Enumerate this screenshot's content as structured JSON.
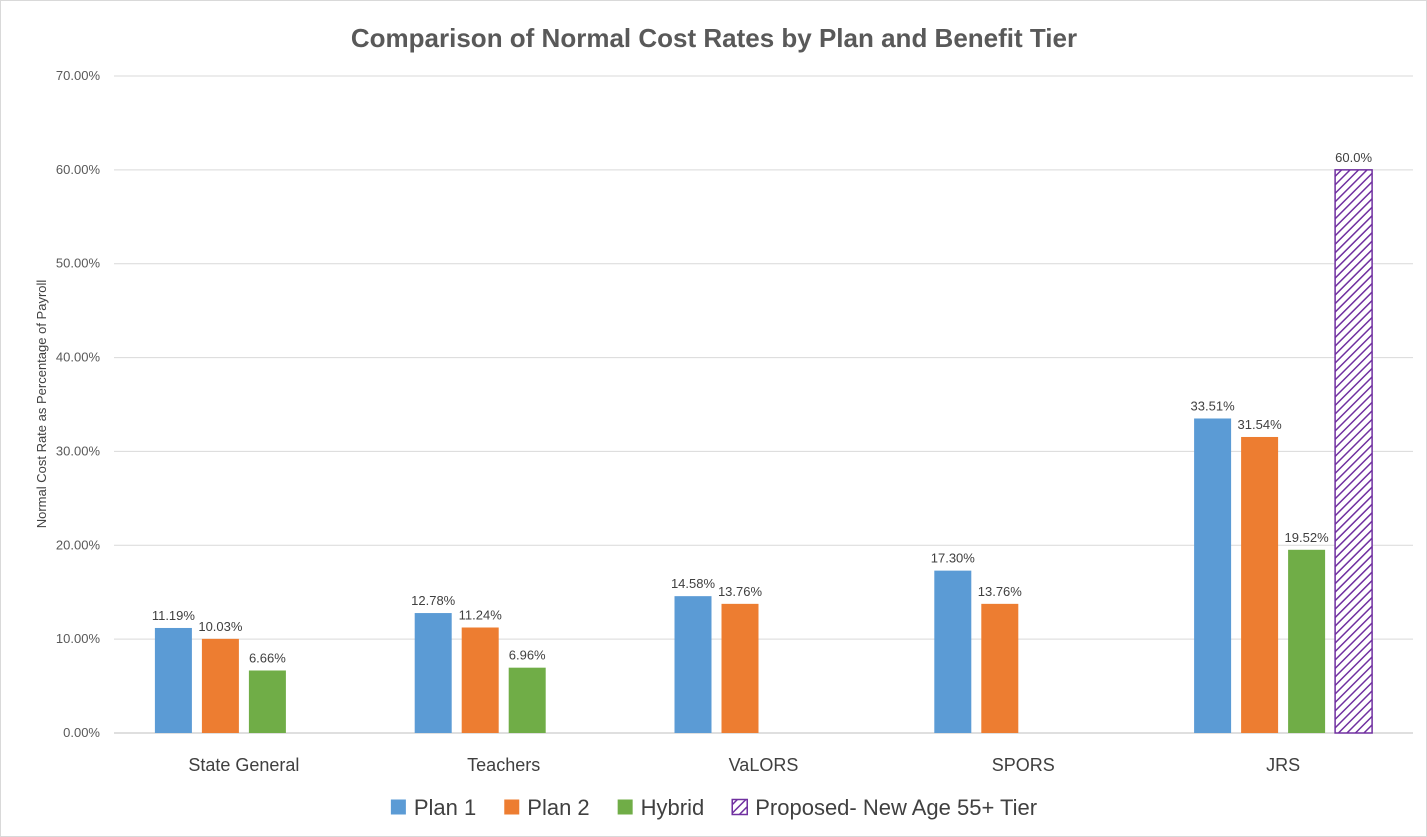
{
  "chart_data": {
    "type": "bar",
    "title": "Comparison of Normal Cost Rates by Plan and Benefit Tier",
    "xlabel": "",
    "ylabel": "Normal Cost Rate as Percentage of Payroll",
    "ylim": [
      0,
      70
    ],
    "yticks": [
      0,
      10,
      20,
      30,
      40,
      50,
      60,
      70
    ],
    "ytick_labels": [
      "0.00%",
      "10.00%",
      "20.00%",
      "30.00%",
      "40.00%",
      "50.00%",
      "60.00%",
      "70.00%"
    ],
    "grid": true,
    "legend_position": "bottom",
    "categories": [
      "State General",
      "Teachers",
      "VaLORS",
      "SPORS",
      "JRS"
    ],
    "series": [
      {
        "name": "Plan 1",
        "color": "#5b9bd5",
        "pattern": "solid",
        "values": [
          11.19,
          12.78,
          14.58,
          17.3,
          33.51
        ],
        "labels": [
          "11.19%",
          "12.78%",
          "14.58%",
          "17.30%",
          "33.51%"
        ]
      },
      {
        "name": "Plan 2",
        "color": "#ed7d31",
        "pattern": "solid",
        "values": [
          10.03,
          11.24,
          13.76,
          13.76,
          31.54
        ],
        "labels": [
          "10.03%",
          "11.24%",
          "13.76%",
          "13.76%",
          "31.54%"
        ]
      },
      {
        "name": "Hybrid",
        "color": "#70ad47",
        "pattern": "solid",
        "values": [
          6.66,
          6.96,
          null,
          null,
          19.52
        ],
        "labels": [
          "6.66%",
          "6.96%",
          null,
          null,
          "19.52%"
        ]
      },
      {
        "name": "Proposed- New Age 55+ Tier",
        "color": "#7030a0",
        "pattern": "diagonal-hatch",
        "values": [
          null,
          null,
          null,
          null,
          60.0
        ],
        "labels": [
          null,
          null,
          null,
          null,
          "60.0%"
        ]
      }
    ]
  }
}
